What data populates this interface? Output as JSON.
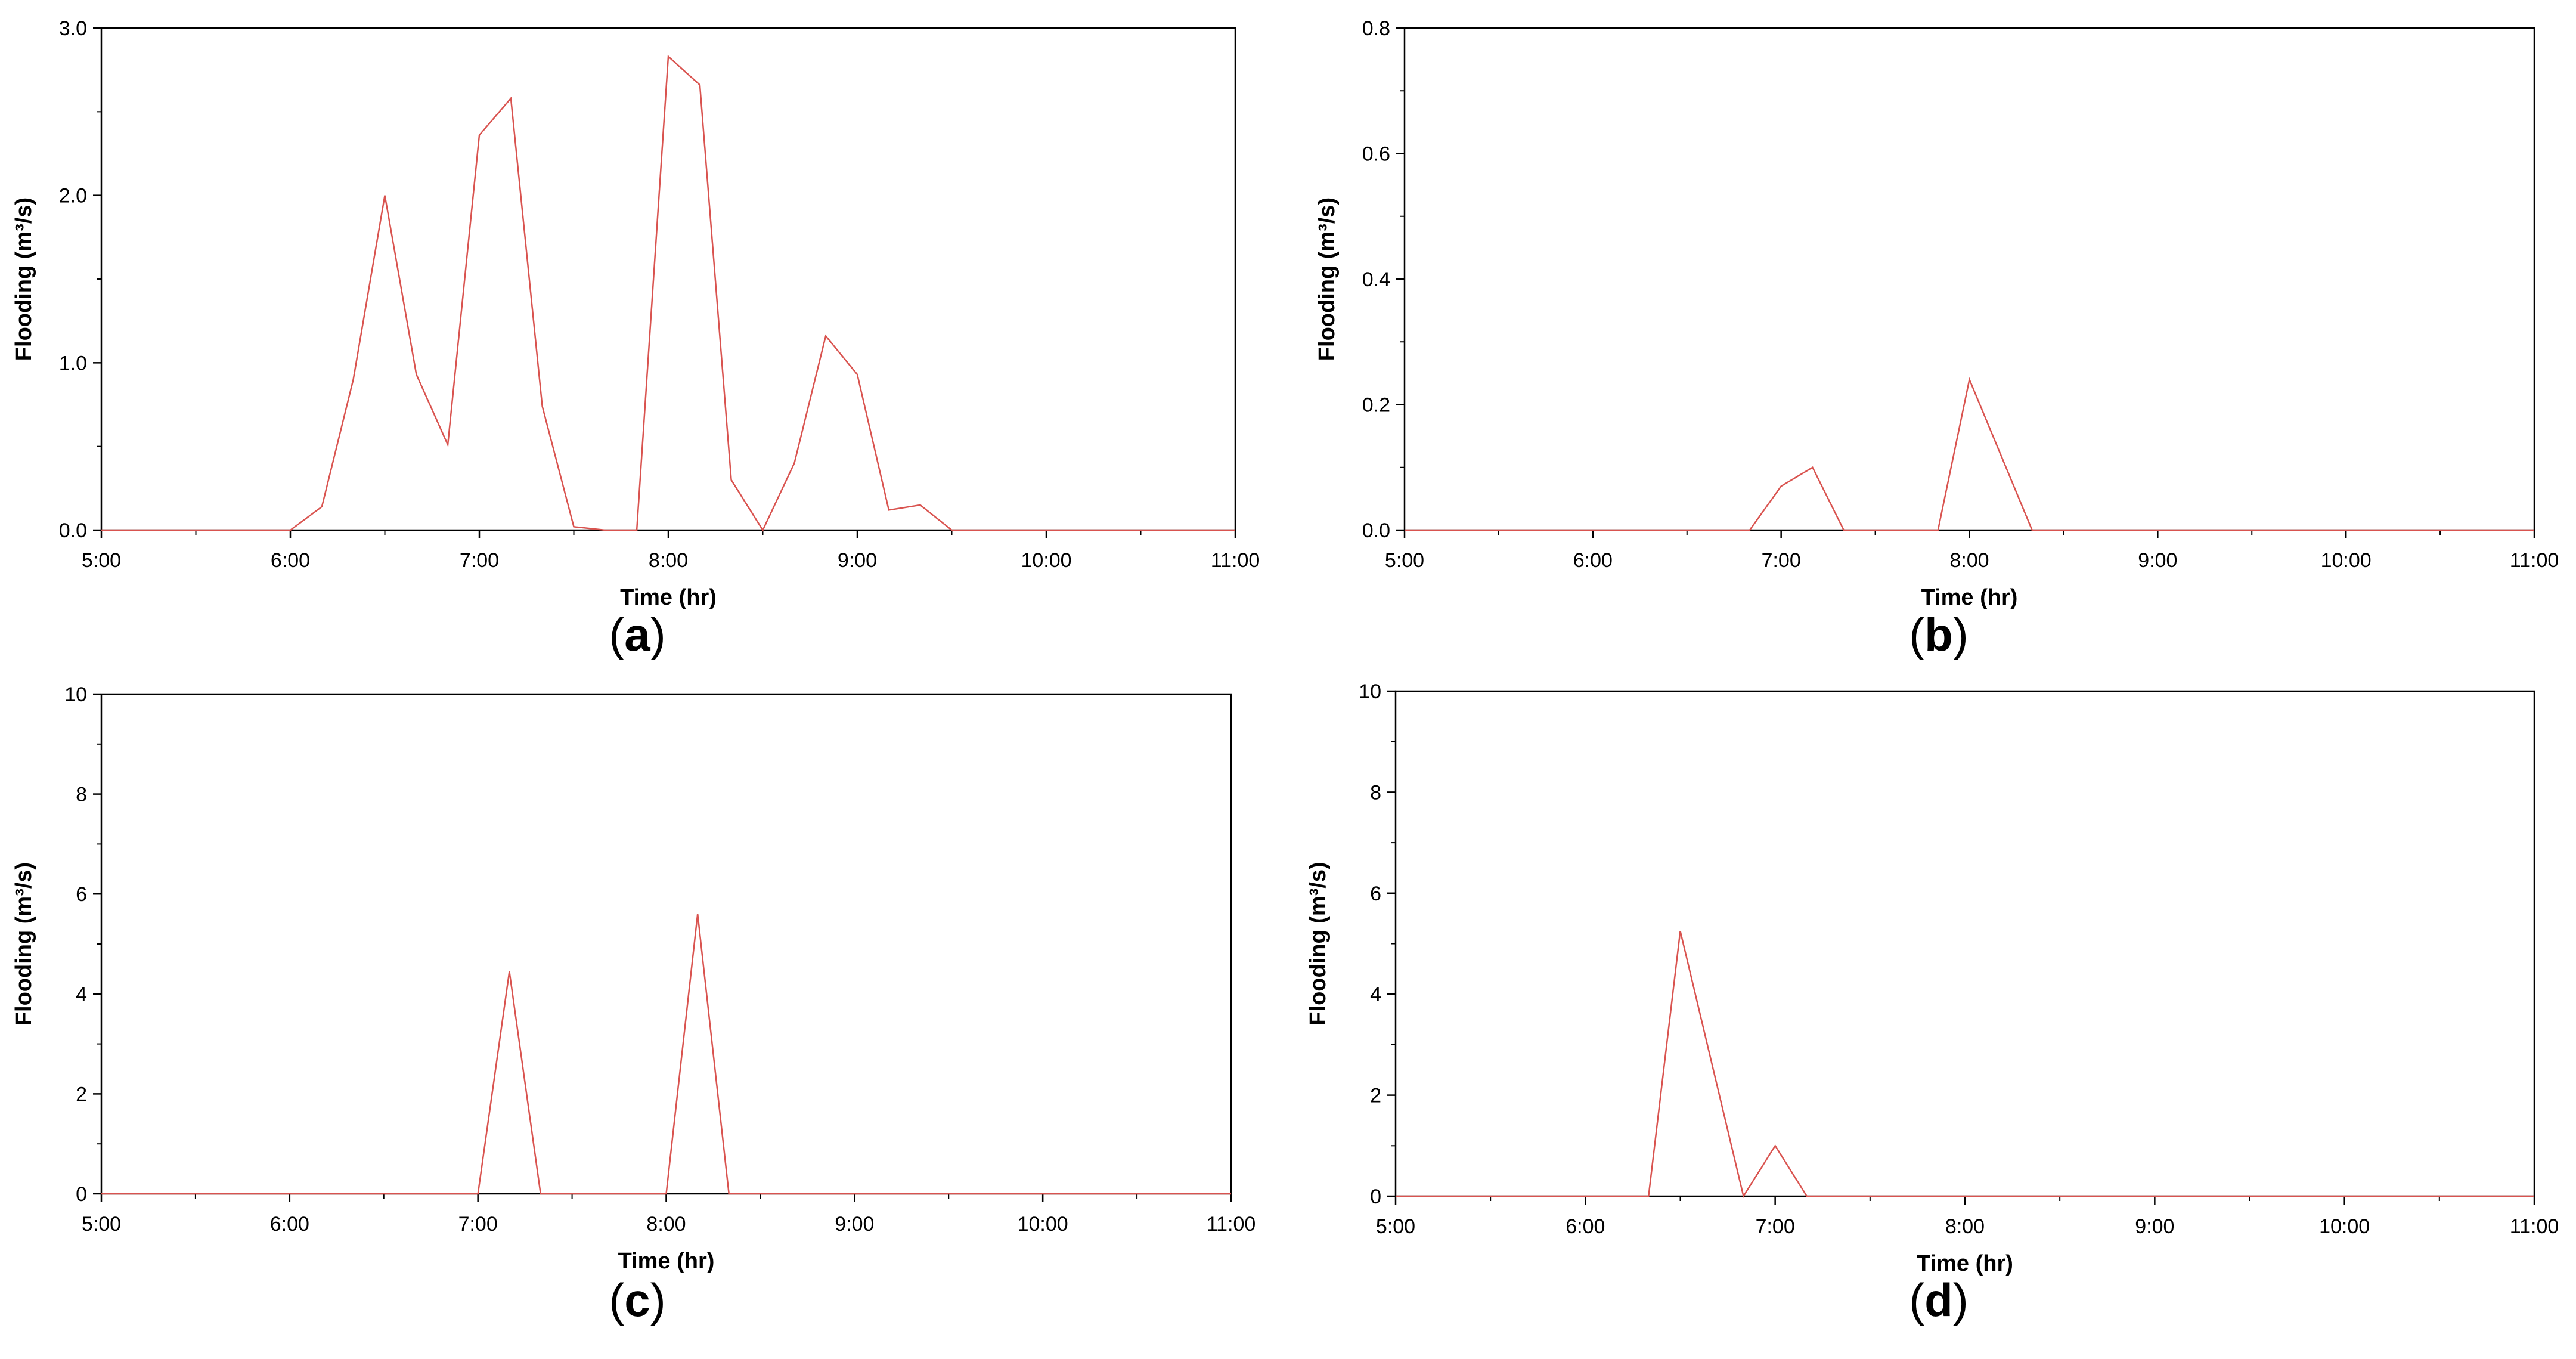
{
  "figure": {
    "panels": [
      "a",
      "b",
      "c",
      "d"
    ]
  },
  "chart_data": [
    {
      "panel": "a",
      "caption_letter": "a",
      "type": "line",
      "xlabel": "Time (hr)",
      "ylabel": "Flooding (m³/s)",
      "xlim": [
        5,
        11
      ],
      "ylim": [
        0,
        3
      ],
      "xticks": [
        "5:00",
        "6:00",
        "7:00",
        "8:00",
        "9:00",
        "10:00",
        "11:00"
      ],
      "yticks": [
        "0.0",
        "1.0",
        "2.0",
        "3.0"
      ],
      "grid": false,
      "series": [
        {
          "color": "#d9534f",
          "x": [
            5.0,
            6.0,
            6.167,
            6.333,
            6.5,
            6.667,
            6.833,
            7.0,
            7.167,
            7.333,
            7.5,
            7.667,
            7.833,
            8.0,
            8.167,
            8.333,
            8.5,
            8.667,
            8.833,
            9.0,
            9.167,
            9.333,
            9.5,
            11.0
          ],
          "y": [
            0,
            0,
            0.14,
            0.9,
            2.0,
            0.93,
            0.51,
            2.36,
            2.58,
            0.74,
            0.02,
            0,
            0,
            2.83,
            2.66,
            0.3,
            0,
            0.4,
            1.16,
            0.93,
            0.12,
            0.15,
            0,
            0
          ]
        }
      ]
    },
    {
      "panel": "b",
      "caption_letter": "b",
      "type": "line",
      "xlabel": "Time (hr)",
      "ylabel": "Flooding (m³/s)",
      "xlim": [
        5,
        11
      ],
      "ylim": [
        0,
        0.8
      ],
      "xticks": [
        "5:00",
        "6:00",
        "7:00",
        "8:00",
        "9:00",
        "10:00",
        "11:00"
      ],
      "yticks": [
        "0.0",
        "0.2",
        "0.4",
        "0.6",
        "0.8"
      ],
      "grid": false,
      "series": [
        {
          "color": "#d9534f",
          "x": [
            5.0,
            6.833,
            7.0,
            7.167,
            7.333,
            7.833,
            8.0,
            8.333,
            11.0
          ],
          "y": [
            0,
            0,
            0.07,
            0.1,
            0,
            0,
            0.24,
            0,
            0
          ]
        }
      ]
    },
    {
      "panel": "c",
      "caption_letter": "c",
      "type": "line",
      "xlabel": "Time (hr)",
      "ylabel": "Flooding (m³/s)",
      "xlim": [
        5,
        11
      ],
      "ylim": [
        0,
        10
      ],
      "xticks": [
        "5:00",
        "6:00",
        "7:00",
        "8:00",
        "9:00",
        "10:00",
        "11:00"
      ],
      "yticks": [
        "0",
        "2",
        "4",
        "6",
        "8",
        "10"
      ],
      "grid": false,
      "series": [
        {
          "color": "#d9534f",
          "x": [
            5.0,
            7.0,
            7.167,
            7.333,
            8.0,
            8.167,
            8.333,
            11.0
          ],
          "y": [
            0,
            0,
            4.45,
            0,
            0,
            5.6,
            0,
            0
          ]
        }
      ]
    },
    {
      "panel": "d",
      "caption_letter": "d",
      "type": "line",
      "xlabel": "Time (hr)",
      "ylabel": "Flooding (m³/s)",
      "xlim": [
        5,
        11
      ],
      "ylim": [
        0,
        10
      ],
      "xticks": [
        "5:00",
        "6:00",
        "7:00",
        "8:00",
        "9:00",
        "10:00",
        "11:00"
      ],
      "yticks": [
        "0",
        "2",
        "4",
        "6",
        "8",
        "10"
      ],
      "grid": false,
      "series": [
        {
          "color": "#d9534f",
          "x": [
            5.0,
            6.333,
            6.5,
            6.833,
            7.0,
            7.167,
            11.0
          ],
          "y": [
            0,
            0,
            5.25,
            0,
            1.0,
            0,
            0
          ]
        }
      ]
    }
  ]
}
